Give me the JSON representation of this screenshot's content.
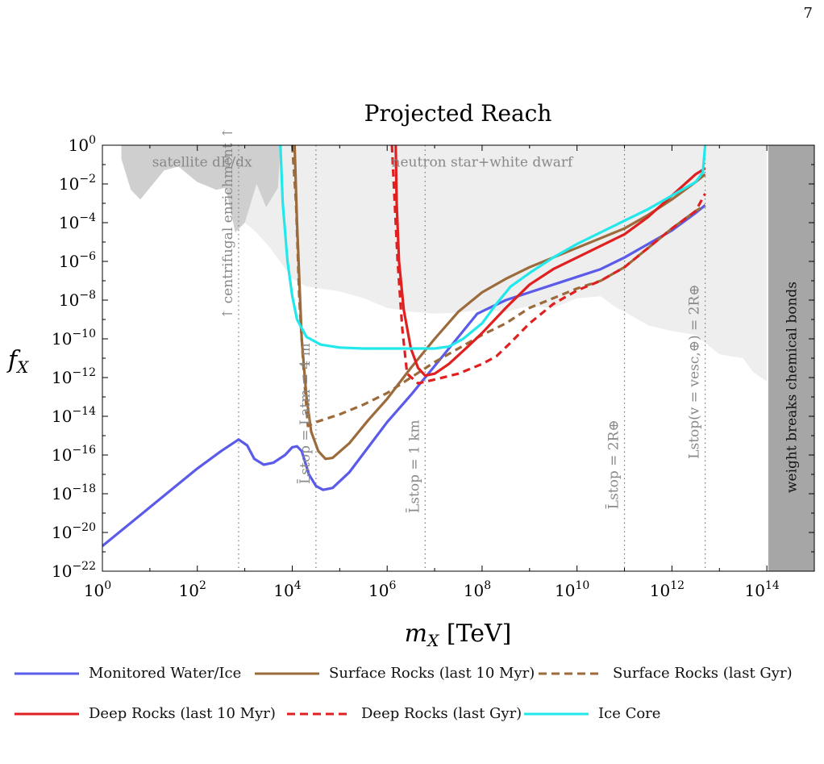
{
  "page": {
    "number": "7"
  },
  "chart_data": {
    "type": "line",
    "title": "Projected Reach",
    "xlabel": "m_X [TeV]",
    "ylabel": "f_X",
    "xscale": "log",
    "yscale": "log",
    "xlim": [
      1,
      1000000000000000.0
    ],
    "ylim": [
      1e-22,
      1
    ],
    "x_ticks": [
      {
        "exp": 0,
        "label": "10"
      },
      {
        "exp": 2,
        "label": "10"
      },
      {
        "exp": 4,
        "label": "10"
      },
      {
        "exp": 6,
        "label": "10"
      },
      {
        "exp": 8,
        "label": "10"
      },
      {
        "exp": 10,
        "label": "10"
      },
      {
        "exp": 12,
        "label": "10"
      },
      {
        "exp": 14,
        "label": "10"
      }
    ],
    "y_ticks": [
      {
        "exp": 0,
        "label": "10"
      },
      {
        "exp": -2,
        "label": "10"
      },
      {
        "exp": -4,
        "label": "10"
      },
      {
        "exp": -6,
        "label": "10"
      },
      {
        "exp": -8,
        "label": "10"
      },
      {
        "exp": -10,
        "label": "10"
      },
      {
        "exp": -12,
        "label": "10"
      },
      {
        "exp": -14,
        "label": "10"
      },
      {
        "exp": -16,
        "label": "10"
      },
      {
        "exp": -18,
        "label": "10"
      },
      {
        "exp": -20,
        "label": "10"
      },
      {
        "exp": -22,
        "label": "10"
      }
    ],
    "series": [
      {
        "name": "Monitored Water/Ice",
        "color": "#5b5bea",
        "dash": false,
        "points": [
          [
            0,
            -20.7
          ],
          [
            1,
            -18.7
          ],
          [
            2,
            -16.7
          ],
          [
            2.5,
            -15.8
          ],
          [
            2.87,
            -15.2
          ],
          [
            3.05,
            -15.5
          ],
          [
            3.2,
            -16.2
          ],
          [
            3.4,
            -16.5
          ],
          [
            3.6,
            -16.4
          ],
          [
            3.85,
            -16.0
          ],
          [
            4.0,
            -15.6
          ],
          [
            4.1,
            -15.55
          ],
          [
            4.2,
            -15.8
          ],
          [
            4.35,
            -17.0
          ],
          [
            4.5,
            -17.6
          ],
          [
            4.65,
            -17.8
          ],
          [
            4.85,
            -17.7
          ],
          [
            5.2,
            -16.9
          ],
          [
            5.6,
            -15.6
          ],
          [
            6.0,
            -14.3
          ],
          [
            6.5,
            -12.9
          ],
          [
            7.0,
            -11.4
          ],
          [
            7.5,
            -9.9
          ],
          [
            7.9,
            -8.7
          ],
          [
            8.5,
            -8.0
          ],
          [
            9.0,
            -7.6
          ],
          [
            9.5,
            -7.2
          ],
          [
            10.0,
            -6.8
          ],
          [
            10.5,
            -6.4
          ],
          [
            11.0,
            -5.8
          ],
          [
            11.5,
            -5.1
          ],
          [
            12.0,
            -4.4
          ],
          [
            12.5,
            -3.5
          ],
          [
            12.7,
            -3.1
          ]
        ]
      },
      {
        "name": "Surface Rocks (last 10 Myr)",
        "color": "#9b6b3b",
        "dash": false,
        "points": [
          [
            4.05,
            0
          ],
          [
            4.1,
            -4.0
          ],
          [
            4.2,
            -10.0
          ],
          [
            4.3,
            -13.0
          ],
          [
            4.4,
            -14.8
          ],
          [
            4.55,
            -15.8
          ],
          [
            4.7,
            -16.2
          ],
          [
            4.85,
            -16.15
          ],
          [
            5.2,
            -15.4
          ],
          [
            5.6,
            -14.2
          ],
          [
            6.0,
            -13.1
          ],
          [
            6.5,
            -11.5
          ],
          [
            7.0,
            -10.0
          ],
          [
            7.5,
            -8.6
          ],
          [
            8.0,
            -7.6
          ],
          [
            8.5,
            -6.9
          ],
          [
            9.0,
            -6.3
          ],
          [
            9.5,
            -5.8
          ],
          [
            10.0,
            -5.3
          ],
          [
            10.5,
            -4.8
          ],
          [
            11.0,
            -4.3
          ],
          [
            11.5,
            -3.6
          ],
          [
            12.0,
            -2.8
          ],
          [
            12.5,
            -1.9
          ],
          [
            12.7,
            -1.5
          ]
        ]
      },
      {
        "name": "Surface Rocks (last Gyr)",
        "color": "#9b6b3b",
        "dash": true,
        "points": [
          [
            4.0,
            0
          ],
          [
            4.08,
            -3.0
          ],
          [
            4.15,
            -8.0
          ],
          [
            4.25,
            -12.0
          ],
          [
            4.33,
            -14.5
          ],
          [
            4.5,
            -14.3
          ],
          [
            5.0,
            -13.9
          ],
          [
            5.5,
            -13.4
          ],
          [
            6.0,
            -12.8
          ],
          [
            6.5,
            -12.0
          ],
          [
            7.0,
            -11.2
          ],
          [
            7.5,
            -10.5
          ],
          [
            8.0,
            -9.8
          ],
          [
            8.5,
            -9.2
          ],
          [
            9.0,
            -8.4
          ],
          [
            9.5,
            -7.9
          ],
          [
            10.0,
            -7.4
          ],
          [
            10.5,
            -7.0
          ],
          [
            11.0,
            -6.3
          ],
          [
            11.5,
            -5.3
          ],
          [
            12.0,
            -4.3
          ],
          [
            12.5,
            -3.4
          ],
          [
            12.7,
            -3.1
          ]
        ]
      },
      {
        "name": "Deep Rocks (last 10 Myr)",
        "color": "#e02020",
        "dash": false,
        "points": [
          [
            6.18,
            0
          ],
          [
            6.2,
            -3.0
          ],
          [
            6.25,
            -6.0
          ],
          [
            6.35,
            -8.5
          ],
          [
            6.5,
            -10.5
          ],
          [
            6.65,
            -11.5
          ],
          [
            6.8,
            -11.9
          ],
          [
            7.0,
            -11.8
          ],
          [
            7.3,
            -11.3
          ],
          [
            7.7,
            -10.4
          ],
          [
            8.0,
            -9.7
          ],
          [
            8.5,
            -8.4
          ],
          [
            9.0,
            -7.2
          ],
          [
            9.5,
            -6.4
          ],
          [
            10.0,
            -5.8
          ],
          [
            10.5,
            -5.2
          ],
          [
            11.0,
            -4.6
          ],
          [
            11.5,
            -3.7
          ],
          [
            12.0,
            -2.6
          ],
          [
            12.5,
            -1.5
          ],
          [
            12.7,
            -1.2
          ]
        ]
      },
      {
        "name": "Deep Rocks (last Gyr)",
        "color": "#e02020",
        "dash": true,
        "points": [
          [
            6.1,
            0
          ],
          [
            6.15,
            -2.5
          ],
          [
            6.22,
            -6.0
          ],
          [
            6.32,
            -9.5
          ],
          [
            6.42,
            -11.8
          ],
          [
            6.65,
            -12.3
          ],
          [
            7.0,
            -12.1
          ],
          [
            7.5,
            -11.8
          ],
          [
            8.0,
            -11.3
          ],
          [
            8.3,
            -10.9
          ],
          [
            8.6,
            -10.2
          ],
          [
            8.8,
            -9.7
          ],
          [
            9.0,
            -9.2
          ],
          [
            9.5,
            -8.2
          ],
          [
            10.0,
            -7.5
          ],
          [
            10.5,
            -7.0
          ],
          [
            11.0,
            -6.3
          ],
          [
            11.5,
            -5.3
          ],
          [
            12.0,
            -4.3
          ],
          [
            12.5,
            -3.4
          ],
          [
            12.7,
            -2.5
          ]
        ]
      },
      {
        "name": "Ice Core",
        "color": "#22e8ec",
        "dash": false,
        "points": [
          [
            3.75,
            0
          ],
          [
            3.8,
            -3.0
          ],
          [
            3.9,
            -6.0
          ],
          [
            4.0,
            -7.8
          ],
          [
            4.1,
            -9.0
          ],
          [
            4.3,
            -9.9
          ],
          [
            4.6,
            -10.3
          ],
          [
            5.0,
            -10.45
          ],
          [
            5.5,
            -10.5
          ],
          [
            6.0,
            -10.5
          ],
          [
            6.5,
            -10.5
          ],
          [
            7.0,
            -10.5
          ],
          [
            7.3,
            -10.4
          ],
          [
            7.6,
            -10.0
          ],
          [
            8.0,
            -9.2
          ],
          [
            8.3,
            -8.2
          ],
          [
            8.6,
            -7.3
          ],
          [
            9.0,
            -6.6
          ],
          [
            9.5,
            -5.8
          ],
          [
            10.0,
            -5.1
          ],
          [
            10.5,
            -4.5
          ],
          [
            11.0,
            -3.9
          ],
          [
            11.5,
            -3.3
          ],
          [
            12.0,
            -2.6
          ],
          [
            12.5,
            -1.9
          ],
          [
            12.65,
            -1.4
          ],
          [
            12.7,
            0
          ]
        ]
      }
    ],
    "shaded_regions": [
      {
        "name": "satellite-dE-dx-region",
        "color": "#cfcfcf",
        "points": [
          [
            0.4,
            0
          ],
          [
            0.4,
            -0.7
          ],
          [
            0.6,
            -2.3
          ],
          [
            0.8,
            -2.8
          ],
          [
            1.0,
            -2.2
          ],
          [
            1.3,
            -1.3
          ],
          [
            1.6,
            -1.1
          ],
          [
            2.0,
            -1.9
          ],
          [
            2.4,
            -2.3
          ],
          [
            2.6,
            -2.2
          ],
          [
            2.8,
            -4.5
          ],
          [
            3.0,
            -4.0
          ],
          [
            3.25,
            -2.0
          ],
          [
            3.45,
            -3.2
          ],
          [
            3.7,
            -2.2
          ],
          [
            3.75,
            0
          ]
        ]
      },
      {
        "name": "neutron-star-white-dwarf-region",
        "color": "#eeeeee",
        "points": [
          [
            0.4,
            0
          ],
          [
            0.4,
            -0.7
          ],
          [
            0.6,
            -2.3
          ],
          [
            0.8,
            -2.8
          ],
          [
            1.0,
            -2.2
          ],
          [
            1.3,
            -1.3
          ],
          [
            1.6,
            -1.1
          ],
          [
            2.0,
            -1.9
          ],
          [
            2.4,
            -2.3
          ],
          [
            2.6,
            -2.2
          ],
          [
            2.8,
            -4.5
          ],
          [
            3.0,
            -4.0
          ],
          [
            3.2,
            -4.4
          ],
          [
            3.5,
            -5.2
          ],
          [
            3.8,
            -6.2
          ],
          [
            4.0,
            -6.9
          ],
          [
            4.3,
            -7.3
          ],
          [
            4.6,
            -7.4
          ],
          [
            5.0,
            -7.55
          ],
          [
            5.5,
            -7.9
          ],
          [
            6.0,
            -8.4
          ],
          [
            6.5,
            -8.6
          ],
          [
            7.0,
            -8.7
          ],
          [
            7.5,
            -8.65
          ],
          [
            8.0,
            -8.5
          ],
          [
            8.5,
            -8.6
          ],
          [
            9.0,
            -8.3
          ],
          [
            9.5,
            -8.4
          ],
          [
            10.0,
            -7.9
          ],
          [
            10.5,
            -7.8
          ],
          [
            10.8,
            -8.35
          ],
          [
            11.0,
            -8.6
          ],
          [
            11.5,
            -9.3
          ],
          [
            12.0,
            -9.6
          ],
          [
            12.5,
            -9.8
          ],
          [
            13.0,
            -10.8
          ],
          [
            13.5,
            -11.0
          ],
          [
            13.7,
            -11.7
          ],
          [
            14.0,
            -12.2
          ],
          [
            14.0,
            0
          ]
        ]
      }
    ],
    "weight_region": {
      "x_start_exp": 14.03,
      "color": "#a6a6a6",
      "label": "weight breaks chemical bonds"
    },
    "region_labels": [
      {
        "name": "satellite-label",
        "text": "satellite dE/dx",
        "x_exp": 2.1,
        "y_exp": -1.1
      },
      {
        "name": "neutron-star-label",
        "text": "neutron star+white dwarf",
        "x_exp": 8.0,
        "y_exp": -1.1
      }
    ],
    "vertical_lines": [
      {
        "name": "centrifugal-line",
        "x_exp": 2.87,
        "label": "↑ centrifugal enrichment ↑",
        "label_y_exp": -9.0
      },
      {
        "name": "atm-line",
        "x_exp": 4.5,
        "label": "L̄stop = Latm = 4 m",
        "label_y_exp": -17.5
      },
      {
        "name": "one-km-line",
        "x_exp": 6.8,
        "label": "L̄stop = 1 km",
        "label_y_exp": -19.0
      },
      {
        "name": "two-earth-radius-line",
        "x_exp": 11.0,
        "label": "L̄stop = 2R⊕",
        "label_y_exp": -18.8
      },
      {
        "name": "escape-line",
        "x_exp": 12.7,
        "label": "Lstop(v = vesc,⊕) = 2R⊕",
        "label_y_exp": -16.2
      }
    ]
  }
}
